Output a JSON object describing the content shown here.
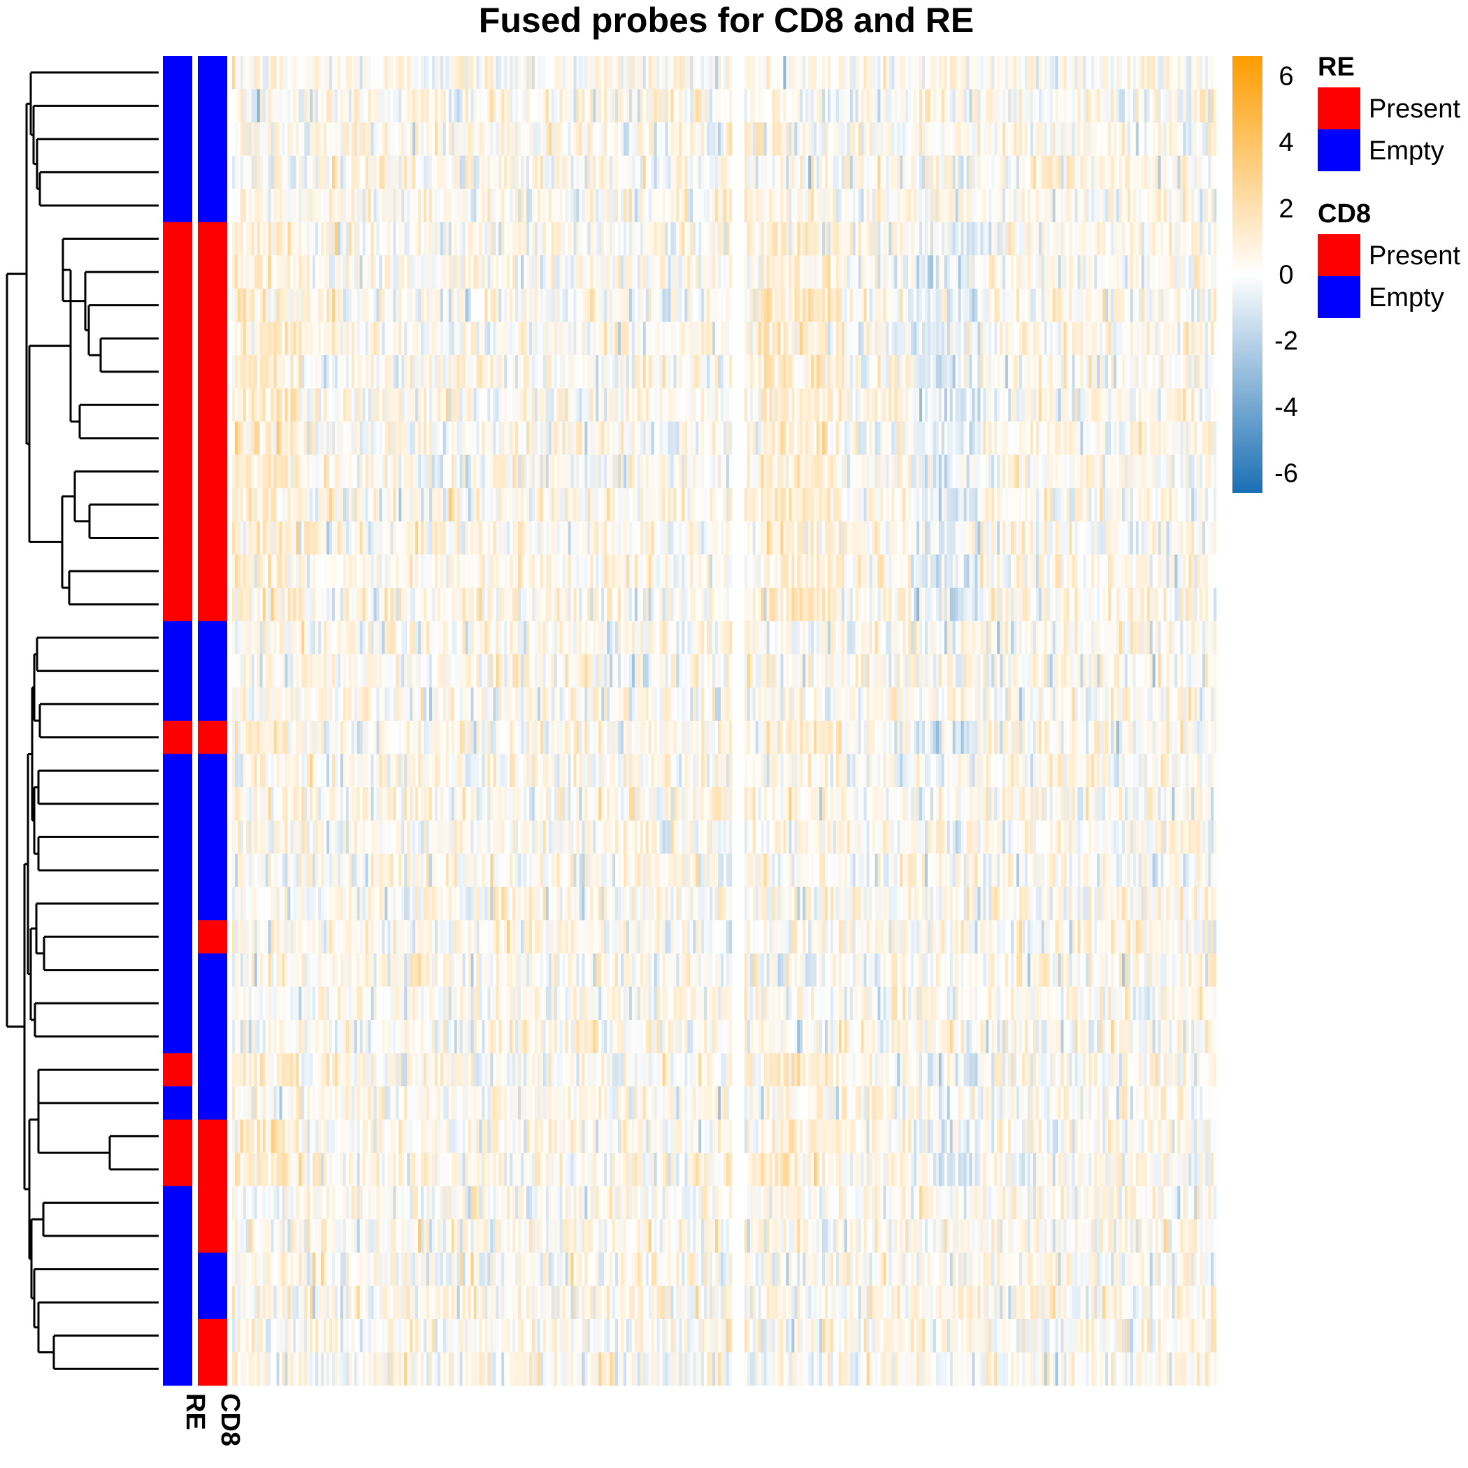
{
  "chart_data": {
    "type": "heatmap",
    "title": "Fused probes for CD8 and RE",
    "rows": 40,
    "columns": 350,
    "column_gap_after": 180,
    "color_scale": {
      "min": -6.6,
      "max": 6.6,
      "ticks": [
        "6",
        "4",
        "2",
        "0",
        "-2",
        "-4",
        "-6"
      ],
      "tick_values": [
        6,
        4,
        2,
        0,
        -2,
        -4,
        -6
      ],
      "colors": {
        "low": "#1a6fb5",
        "mid": "#ffffff",
        "high": "#ff9c00"
      }
    },
    "annotation_tracks": [
      {
        "name": "RE",
        "row_values": [
          "Empty",
          "Empty",
          "Empty",
          "Empty",
          "Empty",
          "Present",
          "Present",
          "Present",
          "Present",
          "Present",
          "Present",
          "Present",
          "Present",
          "Present",
          "Present",
          "Present",
          "Present",
          "Empty",
          "Empty",
          "Empty",
          "Present",
          "Empty",
          "Empty",
          "Empty",
          "Empty",
          "Empty",
          "Empty",
          "Empty",
          "Empty",
          "Empty",
          "Present",
          "Empty",
          "Present",
          "Present",
          "Empty",
          "Empty",
          "Empty",
          "Empty",
          "Empty",
          "Empty"
        ]
      },
      {
        "name": "CD8",
        "row_values": [
          "Empty",
          "Empty",
          "Empty",
          "Empty",
          "Empty",
          "Present",
          "Present",
          "Present",
          "Present",
          "Present",
          "Present",
          "Present",
          "Present",
          "Present",
          "Present",
          "Present",
          "Present",
          "Empty",
          "Empty",
          "Empty",
          "Present",
          "Empty",
          "Empty",
          "Empty",
          "Empty",
          "Empty",
          "Present",
          "Empty",
          "Empty",
          "Empty",
          "Empty",
          "Empty",
          "Present",
          "Present",
          "Present",
          "Present",
          "Empty",
          "Empty",
          "Present",
          "Present"
        ]
      }
    ],
    "legends": [
      {
        "title": "RE",
        "items": [
          {
            "label": "Present",
            "color": "#ff0000"
          },
          {
            "label": "Empty",
            "color": "#0000ff"
          }
        ]
      },
      {
        "title": "CD8",
        "items": [
          {
            "label": "Present",
            "color": "#ff0000"
          },
          {
            "label": "Empty",
            "color": "#0000ff"
          }
        ]
      }
    ],
    "row_dendrogram": true,
    "cell_values_note": "not printed"
  }
}
